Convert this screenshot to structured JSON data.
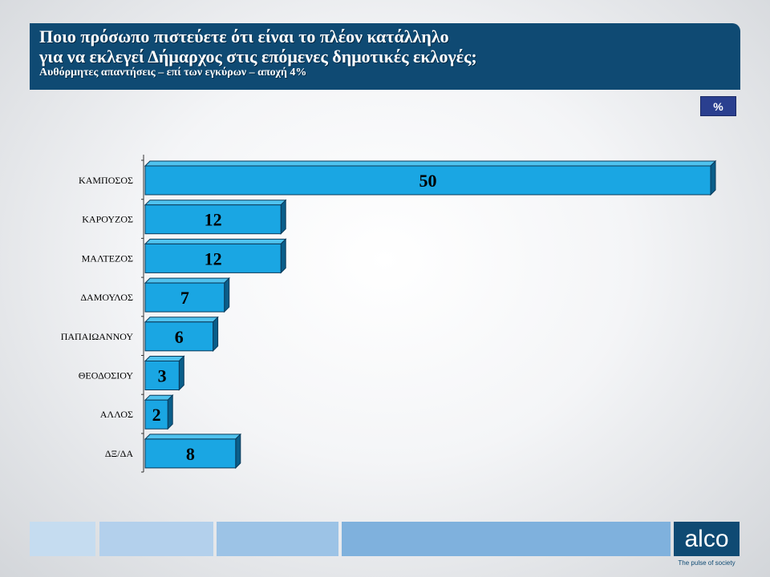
{
  "header": {
    "title_line1": "Ποιο πρόσωπο πιστεύετε ότι είναι το πλέον κατάλληλο",
    "title_line2": "για να εκλεγεί Δήμαρχος στις επόμενες δημοτικές εκλογές;",
    "subtitle": "Αυθόρμητες απαντήσεις – επί των εγκύρων – αποχή 4%"
  },
  "unit_badge": "%",
  "chart_data": {
    "type": "bar",
    "orientation": "horizontal",
    "categories": [
      "ΚΑΜΠΟΣΟΣ",
      "ΚΑΡΟΥΖΟΣ",
      "ΜΑΛΤΕΖΟΣ",
      "ΔΑΜΟΥΛΟΣ",
      "ΠΑΠΑΙΩΑΝΝΟΥ",
      "ΘΕΟΔΟΣΙΟΥ",
      "ΑΛΛΟΣ",
      "ΔΞ/ΔΑ"
    ],
    "values": [
      50,
      12,
      12,
      7,
      6,
      3,
      2,
      8
    ],
    "xlim": [
      0,
      50
    ],
    "grid": false,
    "colors": {
      "bar_front": "#1aa6e3",
      "bar_top": "#4fc2ee",
      "bar_side": "#0a5e8a",
      "bar_edge": "#0a3a5a"
    }
  },
  "footer": {
    "colors": [
      "#c5dcf0",
      "#b3d0ec",
      "#9cc3e6",
      "#7fb1dd"
    ],
    "logo_text": "alco",
    "tagline": "The pulse of society"
  }
}
